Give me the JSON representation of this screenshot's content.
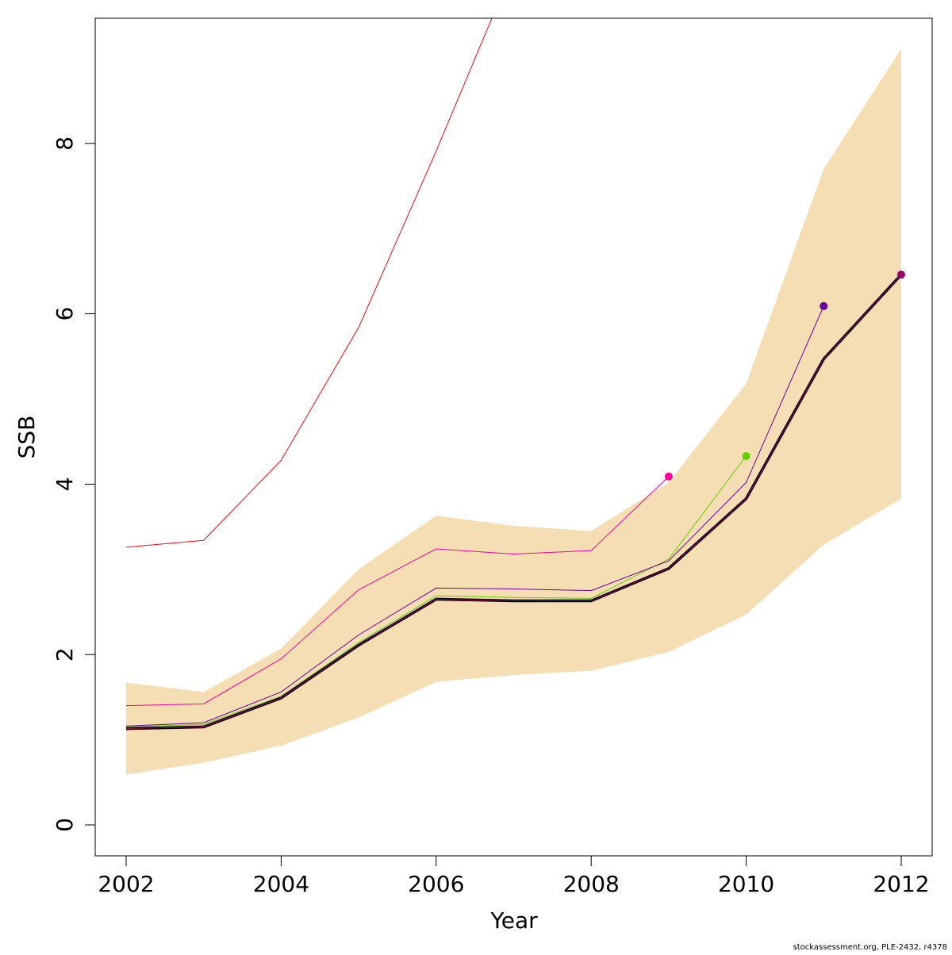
{
  "chart_data": {
    "type": "line",
    "title": "",
    "xlabel": "Year",
    "ylabel": "SSB",
    "xlim": [
      2001.6,
      2012.4
    ],
    "ylim": [
      -0.35,
      9.5
    ],
    "x_ticks": [
      2002,
      2004,
      2006,
      2008,
      2010,
      2012
    ],
    "y_ticks": [
      0,
      2,
      4,
      6,
      8
    ],
    "x_tick_labels": [
      "2002",
      "2004",
      "2006",
      "2008",
      "2010",
      "2012"
    ],
    "y_tick_labels": [
      "0",
      "2",
      "4",
      "6",
      "8"
    ],
    "grid": false,
    "band": {
      "color": "#F5DEB3",
      "x": [
        2002,
        2003,
        2004,
        2005,
        2006,
        2007,
        2008,
        2009,
        2010,
        2011,
        2012
      ],
      "upper": [
        1.67,
        1.56,
        2.07,
        3.0,
        3.63,
        3.51,
        3.45,
        4.02,
        5.18,
        7.7,
        9.11
      ],
      "lower": [
        0.59,
        0.73,
        0.93,
        1.26,
        1.68,
        1.76,
        1.81,
        2.03,
        2.47,
        3.29,
        3.83
      ]
    },
    "series": [
      {
        "name": "red",
        "color": "#FF0000",
        "point": false,
        "x": [
          2002,
          2003,
          2004,
          2005,
          2006,
          2007
        ],
        "values": [
          3.26,
          3.34,
          4.28,
          5.84,
          7.91,
          10.08
        ]
      },
      {
        "name": "pink",
        "color": "#FF0099",
        "point": true,
        "x": [
          2002,
          2003,
          2004,
          2005,
          2006,
          2007,
          2008,
          2009
        ],
        "values": [
          1.4,
          1.42,
          1.95,
          2.76,
          3.24,
          3.18,
          3.22,
          4.09
        ]
      },
      {
        "name": "green",
        "color": "#66CC00",
        "point": true,
        "x": [
          2002,
          2003,
          2004,
          2005,
          2006,
          2007,
          2008,
          2009,
          2010
        ],
        "values": [
          1.15,
          1.18,
          1.51,
          2.14,
          2.69,
          2.67,
          2.66,
          3.12,
          4.33
        ]
      },
      {
        "name": "purple",
        "color": "#660099",
        "point": true,
        "x": [
          2002,
          2003,
          2004,
          2005,
          2006,
          2007,
          2008,
          2009,
          2010,
          2011
        ],
        "values": [
          1.16,
          1.2,
          1.56,
          2.23,
          2.78,
          2.77,
          2.75,
          3.1,
          4.02,
          6.09
        ]
      },
      {
        "name": "maroon",
        "color": "#990066",
        "point": true,
        "base": true,
        "x": [
          2002,
          2003,
          2004,
          2005,
          2006,
          2007,
          2008,
          2009,
          2010,
          2011,
          2012
        ],
        "values": [
          1.13,
          1.15,
          1.49,
          2.11,
          2.65,
          2.63,
          2.63,
          3.01,
          3.83,
          5.47,
          6.46
        ]
      }
    ],
    "footnote": "stockassessment.org, PLE-2432, r4378"
  }
}
